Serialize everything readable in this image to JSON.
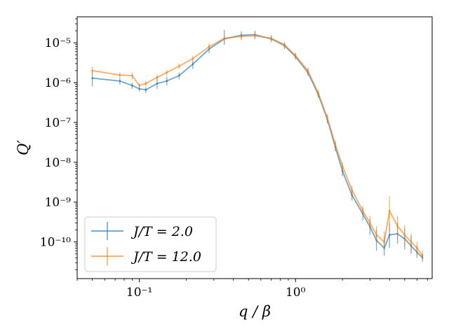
{
  "chart_data": {
    "type": "line",
    "title": "",
    "xlabel": "q / β",
    "ylabel": "Q′",
    "xscale": "log",
    "yscale": "log",
    "xlim": [
      0.04,
      7.5
    ],
    "ylim": [
      1.2e-11,
      4.5e-05
    ],
    "grid": false,
    "legend_position": "lower-left",
    "x_ticks": [
      {
        "value": 0.1,
        "label": "10⁻¹"
      },
      {
        "value": 1,
        "label": "10⁰"
      }
    ],
    "y_ticks": [
      {
        "value": 1e-05,
        "label": "10⁻⁵"
      },
      {
        "value": 1e-06,
        "label": "10⁻⁶"
      },
      {
        "value": 1e-07,
        "label": "10⁻⁷"
      },
      {
        "value": 1e-08,
        "label": "10⁻⁸"
      },
      {
        "value": 1e-09,
        "label": "10⁻⁹"
      },
      {
        "value": 1e-10,
        "label": "10⁻¹⁰"
      }
    ],
    "series": [
      {
        "name": "J/T = 2.0",
        "color": "#1f77b4",
        "x": [
          0.05,
          0.075,
          0.09,
          0.1,
          0.11,
          0.13,
          0.15,
          0.18,
          0.22,
          0.28,
          0.35,
          0.45,
          0.55,
          0.7,
          0.85,
          1.0,
          1.2,
          1.4,
          1.6,
          1.8,
          2.0,
          2.3,
          2.7,
          3.0,
          3.3,
          3.7,
          4.0,
          4.5,
          5.0,
          5.5,
          6.0,
          6.5
        ],
        "y": [
          1.3e-06,
          1.1e-06,
          8.5e-07,
          7e-07,
          6.6e-07,
          9.5e-07,
          1.1e-06,
          1.5e-06,
          2.9e-06,
          7e-06,
          1.25e-05,
          1.55e-05,
          1.6e-05,
          1.25e-05,
          8.5e-06,
          4.5e-06,
          1.8e-06,
          5e-07,
          1.2e-07,
          2.4e-08,
          6e-09,
          1.5e-09,
          5e-10,
          2.4e-10,
          1.1e-10,
          7e-11,
          1.5e-10,
          1.6e-10,
          1.2e-10,
          8e-11,
          5.5e-11,
          4e-11
        ],
        "yerr_lo": [
          8e-07,
          9e-07,
          7e-07,
          6e-07,
          5.5e-07,
          7e-07,
          8.5e-07,
          1.2e-06,
          2.2e-06,
          5.5e-06,
          9e-06,
          1.25e-05,
          1.3e-05,
          1.05e-05,
          7e-06,
          3.8e-06,
          1.5e-06,
          4.2e-07,
          9.5e-08,
          1.9e-08,
          4.5e-09,
          1.1e-09,
          3.5e-10,
          1.5e-10,
          6e-11,
          4.5e-11,
          7e-11,
          9e-11,
          6.5e-11,
          5e-11,
          4e-11,
          3.2e-11
        ],
        "yerr_hi": [
          2e-06,
          1.3e-06,
          1e-06,
          8e-07,
          7.5e-07,
          1.25e-06,
          1.4e-06,
          1.8e-06,
          3.6e-06,
          8.8e-06,
          2.1e-05,
          1.95e-05,
          2e-05,
          1.5e-05,
          1e-05,
          5.5e-06,
          2.2e-06,
          6e-07,
          1.5e-07,
          3.1e-08,
          8e-09,
          2e-09,
          7e-10,
          3.8e-10,
          2e-10,
          1.3e-10,
          3e-10,
          3e-10,
          2.2e-10,
          1.4e-10,
          8e-11,
          5e-11
        ]
      },
      {
        "name": "J/T = 12.0",
        "color": "#ff7f0e",
        "x": [
          0.05,
          0.075,
          0.09,
          0.1,
          0.11,
          0.13,
          0.15,
          0.18,
          0.22,
          0.28,
          0.35,
          0.45,
          0.55,
          0.7,
          0.85,
          1.0,
          1.2,
          1.4,
          1.6,
          1.8,
          2.0,
          2.3,
          2.7,
          3.0,
          3.3,
          3.7,
          4.0,
          4.5,
          5.0,
          5.5,
          6.0,
          6.5
        ],
        "y": [
          2e-06,
          1.55e-06,
          1.5e-06,
          8.5e-07,
          9.5e-07,
          1.35e-06,
          1.8e-06,
          2.6e-06,
          4e-06,
          8e-06,
          1.3e-05,
          1.45e-05,
          1.5e-05,
          1.3e-05,
          9e-06,
          4.8e-06,
          2e-06,
          5.5e-07,
          1.3e-07,
          2.8e-08,
          8e-09,
          2e-09,
          6e-10,
          3e-10,
          1.5e-10,
          1e-10,
          6e-10,
          2.5e-10,
          1.5e-10,
          1e-10,
          7e-11,
          4.5e-11
        ],
        "yerr_lo": [
          1.6e-06,
          1.3e-06,
          1.2e-06,
          7.5e-07,
          8e-07,
          1.1e-06,
          1.5e-06,
          2.2e-06,
          3.3e-06,
          6.5e-06,
          1e-05,
          1.15e-05,
          1.2e-05,
          1.05e-05,
          7.5e-06,
          4e-06,
          1.6e-06,
          4.5e-07,
          1e-07,
          2.2e-08,
          6e-09,
          1.5e-09,
          4.5e-10,
          2e-10,
          9e-11,
          6e-11,
          1.8e-10,
          1.2e-10,
          8e-11,
          6e-11,
          4.5e-11,
          3.5e-11
        ],
        "yerr_hi": [
          2.5e-06,
          1.8e-06,
          1.8e-06,
          9.5e-07,
          1.1e-06,
          1.6e-06,
          2.1e-06,
          3e-06,
          4.8e-06,
          9.5e-06,
          1.65e-05,
          1.8e-05,
          1.85e-05,
          1.55e-05,
          1.05e-05,
          5.6e-06,
          2.4e-06,
          6.5e-07,
          1.6e-07,
          3.5e-08,
          1e-08,
          2.6e-09,
          8e-10,
          4.5e-10,
          2.5e-10,
          1.8e-10,
          1.4e-09,
          4.5e-10,
          2.6e-10,
          1.6e-10,
          1e-10,
          6e-11
        ]
      }
    ]
  }
}
